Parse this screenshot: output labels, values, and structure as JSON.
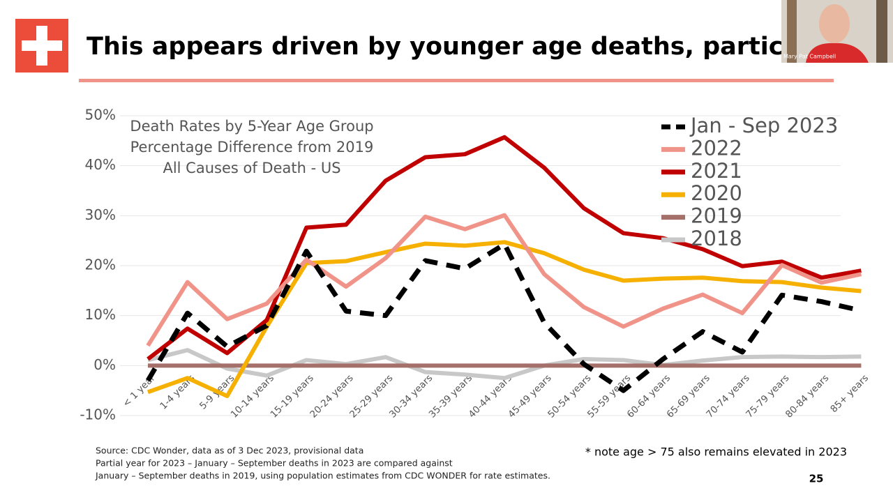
{
  "slide": {
    "title": "This appears driven by younger age deaths, particularly",
    "source_lines": [
      "Source: CDC Wonder, data as of 3 Dec 2023, provisional data",
      "Partial year for 2023 – January – September deaths in 2023 are compared against",
      "January – September deaths in 2019, using population estimates from CDC WONDER for rate estimates."
    ],
    "note": "* note age > 75 also remains elevated in 2023",
    "page_number": "25"
  },
  "webcam": {
    "caption": "Mary Pat Campbell"
  },
  "chart_data": {
    "type": "line",
    "title_lines": [
      "Death Rates by 5-Year Age Group",
      "Percentage Difference from 2019",
      "All Causes of Death - US"
    ],
    "categories": [
      "< 1 year",
      "1-4 years",
      "5-9 years",
      "10-14 years",
      "15-19 years",
      "20-24 years",
      "25-29 years",
      "30-34 years",
      "35-39 years",
      "40-44 years",
      "45-49 years",
      "50-54 years",
      "55-59 years",
      "60-64 years",
      "65-69 years",
      "70-74 years",
      "75-79 years",
      "80-84 years",
      "85+ years"
    ],
    "series": [
      {
        "name": "Jan - Sep 2023",
        "color": "#000000",
        "line_style": "dashed",
        "values": [
          -3,
          10.5,
          3.8,
          8,
          22.9,
          10.9,
          10,
          21,
          19.4,
          24.3,
          8.6,
          0.3,
          -5,
          1.3,
          6.8,
          2.7,
          14.1,
          12.8,
          11
        ]
      },
      {
        "name": "2022",
        "color": "#f0948a",
        "line_style": "solid",
        "values": [
          4,
          16.7,
          9.3,
          12.4,
          21.2,
          15.8,
          21.5,
          29.8,
          27.3,
          30.1,
          18.3,
          11.7,
          7.8,
          11.4,
          14.2,
          10.5,
          20.1,
          16.6,
          18.3
        ]
      },
      {
        "name": "2021",
        "color": "#c00000",
        "line_style": "solid",
        "values": [
          1.3,
          7.4,
          2.5,
          9.1,
          27.6,
          28.2,
          37,
          41.7,
          42.3,
          45.7,
          39.6,
          31.5,
          26.5,
          25.5,
          23.3,
          19.9,
          20.8,
          17.6,
          19
        ]
      },
      {
        "name": "2020",
        "color": "#f5b000",
        "line_style": "solid",
        "values": [
          -5.3,
          -2.5,
          -6.1,
          7.8,
          20.5,
          20.9,
          22.7,
          24.4,
          24,
          24.7,
          22.5,
          19.2,
          17,
          17.4,
          17.6,
          16.9,
          16.7,
          15.6,
          14.9
        ]
      },
      {
        "name": "2019",
        "color": "#a5706a",
        "line_style": "solid",
        "values": [
          0,
          0,
          0,
          0,
          0,
          0,
          0,
          0,
          0,
          0,
          0,
          0,
          0,
          0,
          0,
          0,
          0,
          0,
          0
        ]
      },
      {
        "name": "2018",
        "color": "#c8c8c8",
        "line_style": "solid",
        "values": [
          1.1,
          3.1,
          -0.6,
          -2,
          1.1,
          0.3,
          1.7,
          -1.3,
          -1.8,
          -2.5,
          0,
          1.3,
          1.1,
          0.1,
          1,
          1.7,
          1.8,
          1.7,
          1.8
        ]
      }
    ],
    "ylim": [
      -10,
      50
    ],
    "yticks": [
      {
        "value": -10,
        "label": "-10%"
      },
      {
        "value": 0,
        "label": "0%"
      },
      {
        "value": 10,
        "label": "10%"
      },
      {
        "value": 20,
        "label": "20%"
      },
      {
        "value": 30,
        "label": "30%"
      },
      {
        "value": 40,
        "label": "40%"
      },
      {
        "value": 50,
        "label": "50%"
      }
    ],
    "grid": true,
    "legend": "top-right"
  }
}
